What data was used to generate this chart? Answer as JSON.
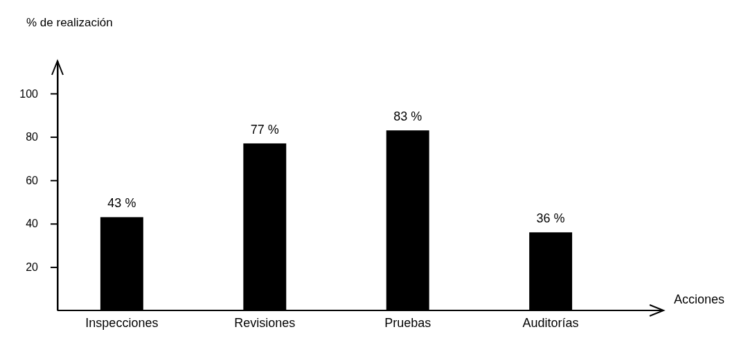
{
  "chart_data": {
    "type": "bar",
    "ylabel": "% de realización",
    "xlabel": "Acciones",
    "categories": [
      "Inspecciones",
      "Revisiones",
      "Pruebas",
      "Auditorías"
    ],
    "values": [
      43,
      77,
      83,
      36
    ],
    "color": "#000000",
    "ylim": [
      0,
      115
    ],
    "yticks": [
      20,
      40,
      60,
      80,
      100
    ],
    "value_labels": [
      "43 %",
      "77 %",
      "83 %",
      "36 %"
    ],
    "grid": false
  }
}
